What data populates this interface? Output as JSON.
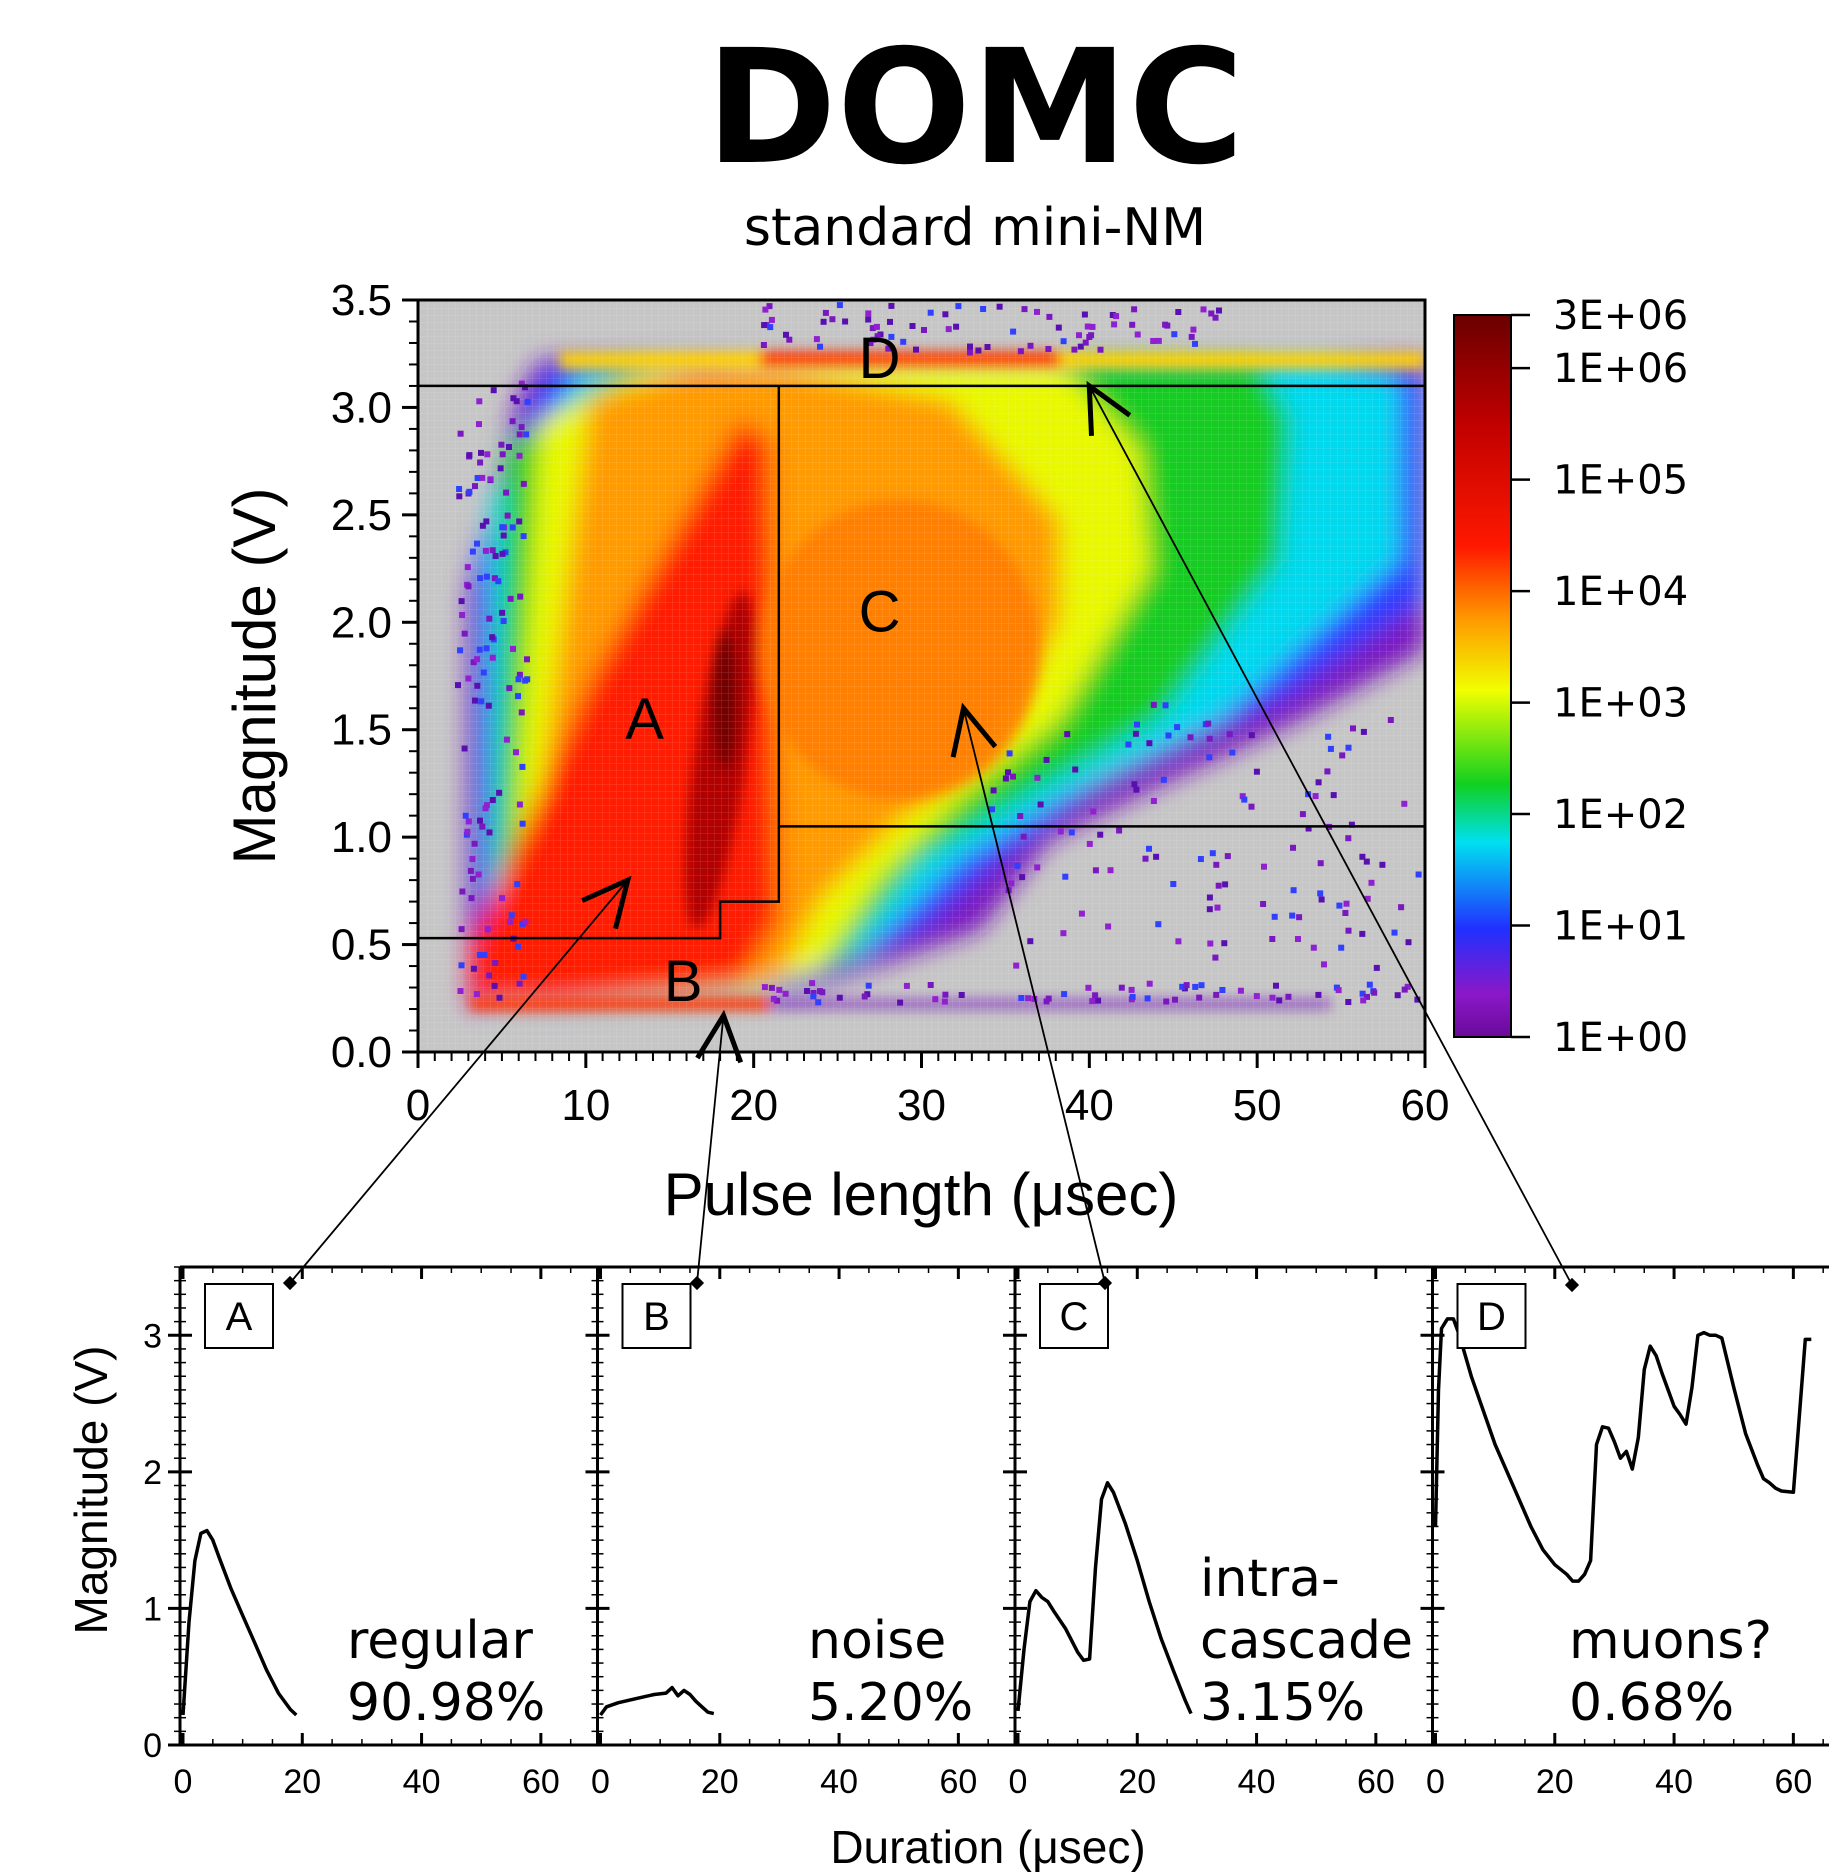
{
  "title": "DOMC",
  "subtitle": "standard mini-NM",
  "colors": {
    "background_gray": "#c6c6c6",
    "colormap": [
      "#6a0a9a",
      "#8a18c8",
      "#2030ff",
      "#00e0f0",
      "#10d020",
      "#f0ff00",
      "#ff9800",
      "#ff1800",
      "#c00000",
      "#6a0000"
    ]
  },
  "chart_data": [
    {
      "type": "heatmap",
      "xlabel": "Pulse length (μsec)",
      "ylabel": "Magnitude (V)",
      "xlim": [
        0,
        60
      ],
      "ylim": [
        0,
        3.5
      ],
      "xticks": [
        "0",
        "10",
        "20",
        "30",
        "40",
        "50",
        "60"
      ],
      "yticks": [
        "0.0",
        "0.5",
        "1.0",
        "1.5",
        "2.0",
        "2.5",
        "3.0",
        "3.5"
      ],
      "xtick_values": [
        0,
        10,
        20,
        30,
        40,
        50,
        60
      ],
      "ytick_values": [
        0,
        0.5,
        1.0,
        1.5,
        2.0,
        2.5,
        3.0,
        3.5
      ],
      "colorbar": {
        "scale": "log",
        "range": [
          1,
          3000000
        ],
        "labels": [
          "3E+06",
          "1E+06",
          "1E+05",
          "1E+04",
          "1E+03",
          "1E+02",
          "1E+01",
          "1E+00"
        ],
        "values": [
          3000000,
          1000000,
          100000,
          10000,
          1000,
          100,
          10,
          1
        ]
      },
      "region_boundaries": [
        {
          "name": "A/B boundary",
          "points": [
            [
              0,
              0.53
            ],
            [
              18,
              0.53
            ],
            [
              18,
              0.7
            ],
            [
              21.5,
              0.7
            ],
            [
              21.5,
              3.1
            ]
          ]
        },
        {
          "name": "C/D boundary",
          "points": [
            [
              0,
              3.1
            ],
            [
              60,
              3.1
            ]
          ]
        },
        {
          "name": "C lower boundary",
          "points": [
            [
              21.5,
              1.05
            ],
            [
              60,
              1.05
            ]
          ]
        }
      ],
      "region_labels": [
        {
          "text": "A",
          "x": 13.5,
          "y": 1.55
        },
        {
          "text": "B",
          "x": 15.8,
          "y": 0.33
        },
        {
          "text": "C",
          "x": 27.5,
          "y": 2.05
        },
        {
          "text": "D",
          "x": 27.5,
          "y": 3.23
        }
      ],
      "arrows": [
        {
          "region": "A",
          "from_x": 12.5,
          "from_y": 0.8
        },
        {
          "region": "B",
          "from_x": 18.2,
          "from_y": 0.17
        },
        {
          "region": "C",
          "from_x": 32.5,
          "from_y": 1.6
        },
        {
          "region": "D",
          "from_x": 40,
          "from_y": 3.1
        }
      ]
    },
    {
      "type": "line",
      "group": "example pulses",
      "ylabel": "Magnitude (V)",
      "xlabel": "Duration (μsec)",
      "xlim": [
        0,
        70
      ],
      "ylim": [
        0,
        3.5
      ],
      "xticks": [
        "0",
        "20",
        "40",
        "60"
      ],
      "xtick_values": [
        0,
        20,
        40,
        60
      ],
      "yticks": [
        "0",
        "1",
        "2",
        "3"
      ],
      "ytick_values": [
        0,
        1,
        2,
        3
      ],
      "panels": [
        {
          "id": "A",
          "label": "A",
          "class_name": "regular",
          "percent": "90.98%",
          "x": [
            0,
            1,
            2,
            3,
            4,
            5,
            6,
            8,
            10,
            12,
            14,
            16,
            18,
            19
          ],
          "y": [
            0.22,
            0.9,
            1.35,
            1.55,
            1.57,
            1.5,
            1.38,
            1.15,
            0.95,
            0.75,
            0.55,
            0.38,
            0.26,
            0.22
          ]
        },
        {
          "id": "B",
          "label": "B",
          "class_name": "noise",
          "percent": "5.20%",
          "x": [
            0,
            1,
            3,
            5,
            7,
            9,
            11,
            12,
            13,
            14,
            15,
            16,
            17,
            18,
            19
          ],
          "y": [
            0.22,
            0.28,
            0.31,
            0.33,
            0.35,
            0.37,
            0.38,
            0.42,
            0.36,
            0.4,
            0.37,
            0.32,
            0.28,
            0.24,
            0.23
          ]
        },
        {
          "id": "C",
          "label": "C",
          "class_name": "intra-cascade",
          "class_name_lines": [
            "intra-",
            "cascade"
          ],
          "percent": "3.15%",
          "x": [
            0,
            1,
            2,
            3,
            4,
            5,
            6,
            8,
            10,
            11,
            12,
            13,
            14,
            15,
            16,
            18,
            20,
            22,
            24,
            26,
            28,
            29
          ],
          "y": [
            0.25,
            0.7,
            1.05,
            1.13,
            1.08,
            1.05,
            0.98,
            0.85,
            0.68,
            0.62,
            0.63,
            1.3,
            1.8,
            1.92,
            1.85,
            1.62,
            1.35,
            1.05,
            0.78,
            0.55,
            0.33,
            0.23
          ]
        },
        {
          "id": "D",
          "label": "D",
          "class_name": "muons?",
          "percent": "0.68%",
          "x": [
            0,
            0.5,
            1,
            2,
            3,
            4,
            6,
            8,
            10,
            12,
            14,
            16,
            18,
            20,
            22,
            23,
            24,
            25,
            26,
            27,
            28,
            29,
            30,
            31,
            32,
            33,
            34,
            35,
            36,
            37,
            38,
            39,
            40,
            41,
            42,
            43,
            44,
            45,
            46,
            47,
            48,
            50,
            52,
            54,
            55,
            56,
            57,
            58,
            60,
            62,
            63
          ],
          "y": [
            1.6,
            2.6,
            3.05,
            3.12,
            3.12,
            3.0,
            2.7,
            2.45,
            2.2,
            2.0,
            1.8,
            1.6,
            1.43,
            1.32,
            1.25,
            1.2,
            1.2,
            1.25,
            1.35,
            2.2,
            2.33,
            2.32,
            2.22,
            2.1,
            2.15,
            2.02,
            2.25,
            2.75,
            2.92,
            2.85,
            2.72,
            2.6,
            2.48,
            2.42,
            2.35,
            2.62,
            3.0,
            3.02,
            3.0,
            3.0,
            2.98,
            2.62,
            2.28,
            2.05,
            1.95,
            1.92,
            1.88,
            1.86,
            1.85,
            2.97,
            2.97
          ]
        }
      ]
    }
  ]
}
